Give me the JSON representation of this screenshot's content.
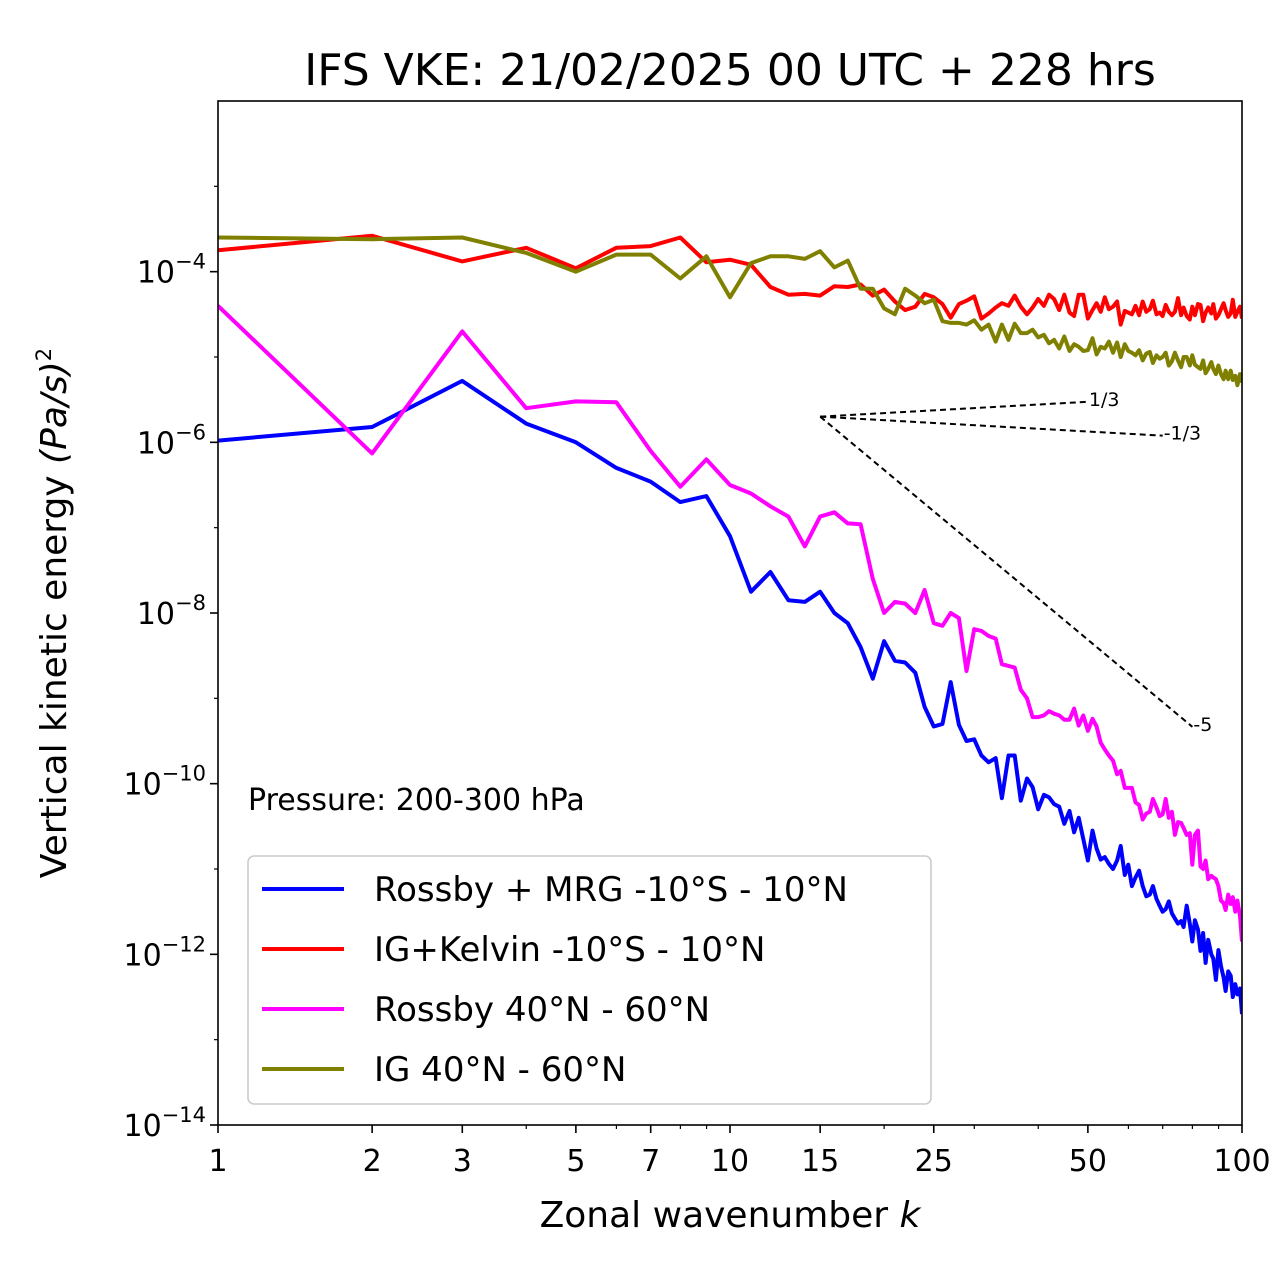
{
  "chart_data": {
    "type": "line",
    "title": "IFS VKE: 21/02/2025 00 UTC + 228 hrs",
    "xlabel": "Zonal wavenumber",
    "xlabel_var": "k",
    "ylabel": "Vertical kinetic energy",
    "ylabel_unit": "(Pa/s)",
    "ylabel_exp": "2",
    "xscale": "log",
    "yscale": "log",
    "xlim": [
      1,
      100
    ],
    "ylim": [
      1e-14,
      0.01
    ],
    "x_ticks": [
      "1",
      "2",
      "3",
      "5",
      "7",
      "10",
      "15",
      "25",
      "50",
      "100"
    ],
    "x_tick_values": [
      1,
      2,
      3,
      5,
      7,
      10,
      15,
      25,
      50,
      100
    ],
    "y_ticks": [
      {
        "value": 0.0001,
        "base": "10",
        "exp": "−4"
      },
      {
        "value": 1e-06,
        "base": "10",
        "exp": "−6"
      },
      {
        "value": 1e-08,
        "base": "10",
        "exp": "−8"
      },
      {
        "value": 1e-10,
        "base": "10",
        "exp": "−10"
      },
      {
        "value": 1e-12,
        "base": "10",
        "exp": "−12"
      },
      {
        "value": 1e-14,
        "base": "10",
        "exp": "−14"
      }
    ],
    "annotation": "Pressure: 200-300 hPa",
    "legend_placement": "lower-left",
    "reference_slopes": {
      "origin": [
        15,
        2e-06
      ],
      "lines": [
        {
          "label": "1/3",
          "slope": 0.3333,
          "x_end": 50
        },
        {
          "label": "-1/3",
          "slope": -0.3333,
          "x_end": 70
        },
        {
          "label": "-5",
          "slope": -5,
          "x_end": 80
        }
      ]
    },
    "series": [
      {
        "name": "Rossby + MRG -10°S - 10°N",
        "color": "#0000ff",
        "x_log": [
          0.0,
          0.301,
          0.477,
          0.602,
          0.699,
          0.778,
          0.845,
          0.903,
          0.954,
          1.0,
          1.041,
          1.079,
          1.114,
          1.146,
          1.176,
          1.204,
          1.23,
          1.255,
          1.279,
          1.301,
          1.322,
          1.342,
          1.362,
          1.38,
          1.398,
          1.415,
          1.431,
          1.447,
          1.462,
          1.477,
          1.491,
          1.505,
          1.519,
          1.531,
          1.544,
          1.556,
          1.568,
          1.58,
          1.591,
          1.602,
          1.613,
          1.623,
          1.633,
          1.643,
          1.653,
          1.663,
          1.672,
          1.681,
          1.69,
          1.699,
          1.708,
          1.716,
          1.724,
          1.732,
          1.74,
          1.748,
          1.756,
          1.763,
          1.771,
          1.778,
          1.785,
          1.792,
          1.799,
          1.806,
          1.813,
          1.82,
          1.826,
          1.833,
          1.839,
          1.845,
          1.851,
          1.857,
          1.863,
          1.869,
          1.875,
          1.881,
          1.886,
          1.892,
          1.898,
          1.903,
          1.908,
          1.914,
          1.919,
          1.924,
          1.929,
          1.934,
          1.94,
          1.944,
          1.949,
          1.954,
          1.959,
          1.964,
          1.968,
          1.973,
          1.978,
          1.982,
          1.987,
          1.991,
          1.996,
          2.0
        ],
        "y_log": [
          -5.98,
          -5.82,
          -5.28,
          -5.78,
          -6.0,
          -6.3,
          -6.46,
          -6.7,
          -6.63,
          -7.1,
          -7.75,
          -7.52,
          -7.85,
          -7.87,
          -7.75,
          -8.0,
          -8.12,
          -8.4,
          -8.77,
          -8.33,
          -8.56,
          -8.58,
          -8.7,
          -9.1,
          -9.33,
          -9.3,
          -8.81,
          -9.31,
          -9.5,
          -9.48,
          -9.67,
          -9.75,
          -9.7,
          -10.17,
          -9.67,
          -9.67,
          -10.2,
          -9.94,
          -10.04,
          -10.3,
          -10.13,
          -10.16,
          -10.24,
          -10.27,
          -10.47,
          -10.32,
          -10.57,
          -10.4,
          -10.65,
          -10.9,
          -10.55,
          -10.76,
          -10.89,
          -10.86,
          -10.94,
          -11.0,
          -10.9,
          -10.73,
          -11.07,
          -10.95,
          -11.2,
          -11.1,
          -11.02,
          -11.2,
          -11.32,
          -11.3,
          -11.2,
          -11.35,
          -11.43,
          -11.5,
          -11.47,
          -11.38,
          -11.52,
          -11.58,
          -11.64,
          -11.61,
          -11.68,
          -11.43,
          -11.64,
          -11.85,
          -11.6,
          -11.71,
          -11.96,
          -11.75,
          -12.1,
          -11.83,
          -12.0,
          -12.05,
          -12.3,
          -11.95,
          -12.14,
          -12.27,
          -12.43,
          -12.2,
          -12.25,
          -12.5,
          -12.35,
          -12.47,
          -12.4,
          -12.7
        ]
      },
      {
        "name": "IG+Kelvin -10°S - 10°N",
        "color": "#ff0000",
        "x_log": [
          0.0,
          0.301,
          0.477,
          0.602,
          0.699,
          0.778,
          0.845,
          0.903,
          0.954,
          1.0,
          1.041,
          1.079,
          1.114,
          1.146,
          1.176,
          1.204,
          1.23,
          1.255,
          1.279,
          1.301,
          1.322,
          1.342,
          1.362,
          1.38,
          1.398,
          1.415,
          1.431,
          1.447,
          1.462,
          1.477,
          1.491,
          1.505,
          1.519,
          1.531,
          1.544,
          1.556,
          1.568,
          1.58,
          1.591,
          1.602,
          1.613,
          1.623,
          1.633,
          1.643,
          1.653,
          1.663,
          1.672,
          1.681,
          1.69,
          1.699,
          1.708,
          1.716,
          1.724,
          1.732,
          1.74,
          1.748,
          1.756,
          1.763,
          1.771,
          1.778,
          1.785,
          1.792,
          1.799,
          1.806,
          1.813,
          1.82,
          1.826,
          1.833,
          1.839,
          1.845,
          1.851,
          1.857,
          1.863,
          1.869,
          1.875,
          1.881,
          1.886,
          1.892,
          1.898,
          1.903,
          1.908,
          1.914,
          1.919,
          1.924,
          1.929,
          1.934,
          1.94,
          1.944,
          1.949,
          1.954,
          1.959,
          1.964,
          1.968,
          1.973,
          1.978,
          1.982,
          1.987,
          1.991,
          1.996,
          2.0
        ],
        "y_log": [
          -3.75,
          -3.58,
          -3.88,
          -3.72,
          -3.96,
          -3.72,
          -3.7,
          -3.6,
          -3.89,
          -3.86,
          -3.92,
          -4.18,
          -4.27,
          -4.26,
          -4.28,
          -4.17,
          -4.18,
          -4.15,
          -4.28,
          -4.21,
          -4.35,
          -4.45,
          -4.41,
          -4.26,
          -4.3,
          -4.38,
          -4.54,
          -4.38,
          -4.34,
          -4.29,
          -4.55,
          -4.49,
          -4.42,
          -4.37,
          -4.4,
          -4.28,
          -4.41,
          -4.5,
          -4.42,
          -4.32,
          -4.4,
          -4.27,
          -4.32,
          -4.45,
          -4.27,
          -4.48,
          -4.52,
          -4.27,
          -4.27,
          -4.55,
          -4.45,
          -4.37,
          -4.47,
          -4.3,
          -4.44,
          -4.41,
          -4.35,
          -4.62,
          -4.46,
          -4.48,
          -4.5,
          -4.4,
          -4.51,
          -4.35,
          -4.47,
          -4.44,
          -4.34,
          -4.5,
          -4.48,
          -4.52,
          -4.39,
          -4.47,
          -4.51,
          -4.47,
          -4.31,
          -4.51,
          -4.42,
          -4.52,
          -4.56,
          -4.41,
          -4.51,
          -4.38,
          -4.39,
          -4.58,
          -4.48,
          -4.42,
          -4.49,
          -4.38,
          -4.55,
          -4.51,
          -4.44,
          -4.37,
          -4.45,
          -4.53,
          -4.49,
          -4.33,
          -4.53,
          -4.47,
          -4.41,
          -4.55
        ]
      },
      {
        "name": "Rossby 40°N - 60°N",
        "color": "#ff00ff",
        "x_log": [
          0.0,
          0.301,
          0.477,
          0.602,
          0.699,
          0.778,
          0.845,
          0.903,
          0.954,
          1.0,
          1.041,
          1.079,
          1.114,
          1.146,
          1.176,
          1.204,
          1.23,
          1.255,
          1.279,
          1.301,
          1.322,
          1.342,
          1.362,
          1.38,
          1.398,
          1.415,
          1.431,
          1.447,
          1.462,
          1.477,
          1.491,
          1.505,
          1.519,
          1.531,
          1.544,
          1.556,
          1.568,
          1.58,
          1.591,
          1.602,
          1.613,
          1.623,
          1.633,
          1.643,
          1.653,
          1.663,
          1.672,
          1.681,
          1.69,
          1.699,
          1.708,
          1.716,
          1.724,
          1.732,
          1.74,
          1.748,
          1.756,
          1.763,
          1.771,
          1.778,
          1.785,
          1.792,
          1.799,
          1.806,
          1.813,
          1.82,
          1.826,
          1.833,
          1.839,
          1.845,
          1.851,
          1.857,
          1.863,
          1.869,
          1.875,
          1.881,
          1.886,
          1.892,
          1.898,
          1.903,
          1.908,
          1.914,
          1.919,
          1.924,
          1.929,
          1.934,
          1.94,
          1.944,
          1.949,
          1.954,
          1.959,
          1.964,
          1.968,
          1.973,
          1.978,
          1.982,
          1.987,
          1.991,
          1.996,
          2.0
        ],
        "y_log": [
          -4.4,
          -6.13,
          -4.7,
          -5.6,
          -5.52,
          -5.53,
          -6.1,
          -6.52,
          -6.2,
          -6.5,
          -6.6,
          -6.75,
          -6.87,
          -7.22,
          -6.87,
          -6.82,
          -6.95,
          -6.96,
          -7.6,
          -8.0,
          -7.87,
          -7.89,
          -8.0,
          -7.73,
          -8.12,
          -8.15,
          -8.0,
          -8.06,
          -8.68,
          -8.19,
          -8.21,
          -8.27,
          -8.3,
          -8.6,
          -8.62,
          -8.64,
          -8.9,
          -9.0,
          -9.22,
          -9.22,
          -9.2,
          -9.15,
          -9.18,
          -9.2,
          -9.25,
          -9.25,
          -9.12,
          -9.32,
          -9.2,
          -9.38,
          -9.24,
          -9.33,
          -9.52,
          -9.6,
          -9.67,
          -9.73,
          -9.89,
          -9.85,
          -10.05,
          -10.05,
          -10.05,
          -10.22,
          -10.25,
          -10.42,
          -10.35,
          -10.33,
          -10.18,
          -10.28,
          -10.38,
          -10.36,
          -10.18,
          -10.4,
          -10.33,
          -10.6,
          -10.45,
          -10.46,
          -10.52,
          -10.6,
          -10.58,
          -10.95,
          -10.6,
          -10.55,
          -10.97,
          -11.0,
          -10.9,
          -11.12,
          -11.08,
          -11.1,
          -11.12,
          -11.2,
          -11.37,
          -11.4,
          -11.48,
          -11.3,
          -11.41,
          -11.33,
          -11.5,
          -11.37,
          -11.55,
          -11.85
        ]
      },
      {
        "name": "IG 40°N - 60°N",
        "color": "#808000",
        "x_log": [
          0.0,
          0.301,
          0.477,
          0.602,
          0.699,
          0.778,
          0.845,
          0.903,
          0.954,
          1.0,
          1.041,
          1.079,
          1.114,
          1.146,
          1.176,
          1.204,
          1.23,
          1.255,
          1.279,
          1.301,
          1.322,
          1.342,
          1.362,
          1.38,
          1.398,
          1.415,
          1.431,
          1.447,
          1.462,
          1.477,
          1.491,
          1.505,
          1.519,
          1.531,
          1.544,
          1.556,
          1.568,
          1.58,
          1.591,
          1.602,
          1.613,
          1.623,
          1.633,
          1.643,
          1.653,
          1.663,
          1.672,
          1.681,
          1.69,
          1.699,
          1.708,
          1.716,
          1.724,
          1.732,
          1.74,
          1.748,
          1.756,
          1.763,
          1.771,
          1.778,
          1.785,
          1.792,
          1.799,
          1.806,
          1.813,
          1.82,
          1.826,
          1.833,
          1.839,
          1.845,
          1.851,
          1.857,
          1.863,
          1.869,
          1.875,
          1.881,
          1.886,
          1.892,
          1.898,
          1.903,
          1.908,
          1.914,
          1.919,
          1.924,
          1.929,
          1.934,
          1.94,
          1.944,
          1.949,
          1.954,
          1.959,
          1.964,
          1.968,
          1.973,
          1.978,
          1.982,
          1.987,
          1.991,
          1.996,
          2.0
        ],
        "y_log": [
          -3.6,
          -3.62,
          -3.6,
          -3.78,
          -4.0,
          -3.8,
          -3.8,
          -4.08,
          -3.82,
          -4.3,
          -3.9,
          -3.82,
          -3.82,
          -3.85,
          -3.76,
          -3.95,
          -3.87,
          -4.2,
          -4.2,
          -4.43,
          -4.5,
          -4.2,
          -4.28,
          -4.37,
          -4.33,
          -4.58,
          -4.6,
          -4.6,
          -4.62,
          -4.57,
          -4.68,
          -4.62,
          -4.82,
          -4.62,
          -4.8,
          -4.61,
          -4.72,
          -4.72,
          -4.68,
          -4.77,
          -4.74,
          -4.84,
          -4.8,
          -4.9,
          -4.76,
          -4.93,
          -4.85,
          -4.88,
          -4.93,
          -4.92,
          -4.78,
          -4.97,
          -4.88,
          -4.9,
          -4.82,
          -4.95,
          -4.83,
          -5.0,
          -4.85,
          -4.93,
          -4.95,
          -4.98,
          -4.92,
          -5.04,
          -4.96,
          -4.94,
          -5.07,
          -4.98,
          -5.02,
          -5.0,
          -4.95,
          -5.1,
          -5.05,
          -4.95,
          -5.04,
          -5.12,
          -5.0,
          -5.0,
          -5.1,
          -4.98,
          -5.09,
          -5.12,
          -5.14,
          -5.04,
          -5.19,
          -5.14,
          -5.06,
          -5.14,
          -5.2,
          -5.1,
          -5.2,
          -5.26,
          -5.16,
          -5.26,
          -5.16,
          -5.27,
          -5.22,
          -5.33,
          -5.2,
          -5.3
        ]
      }
    ]
  }
}
